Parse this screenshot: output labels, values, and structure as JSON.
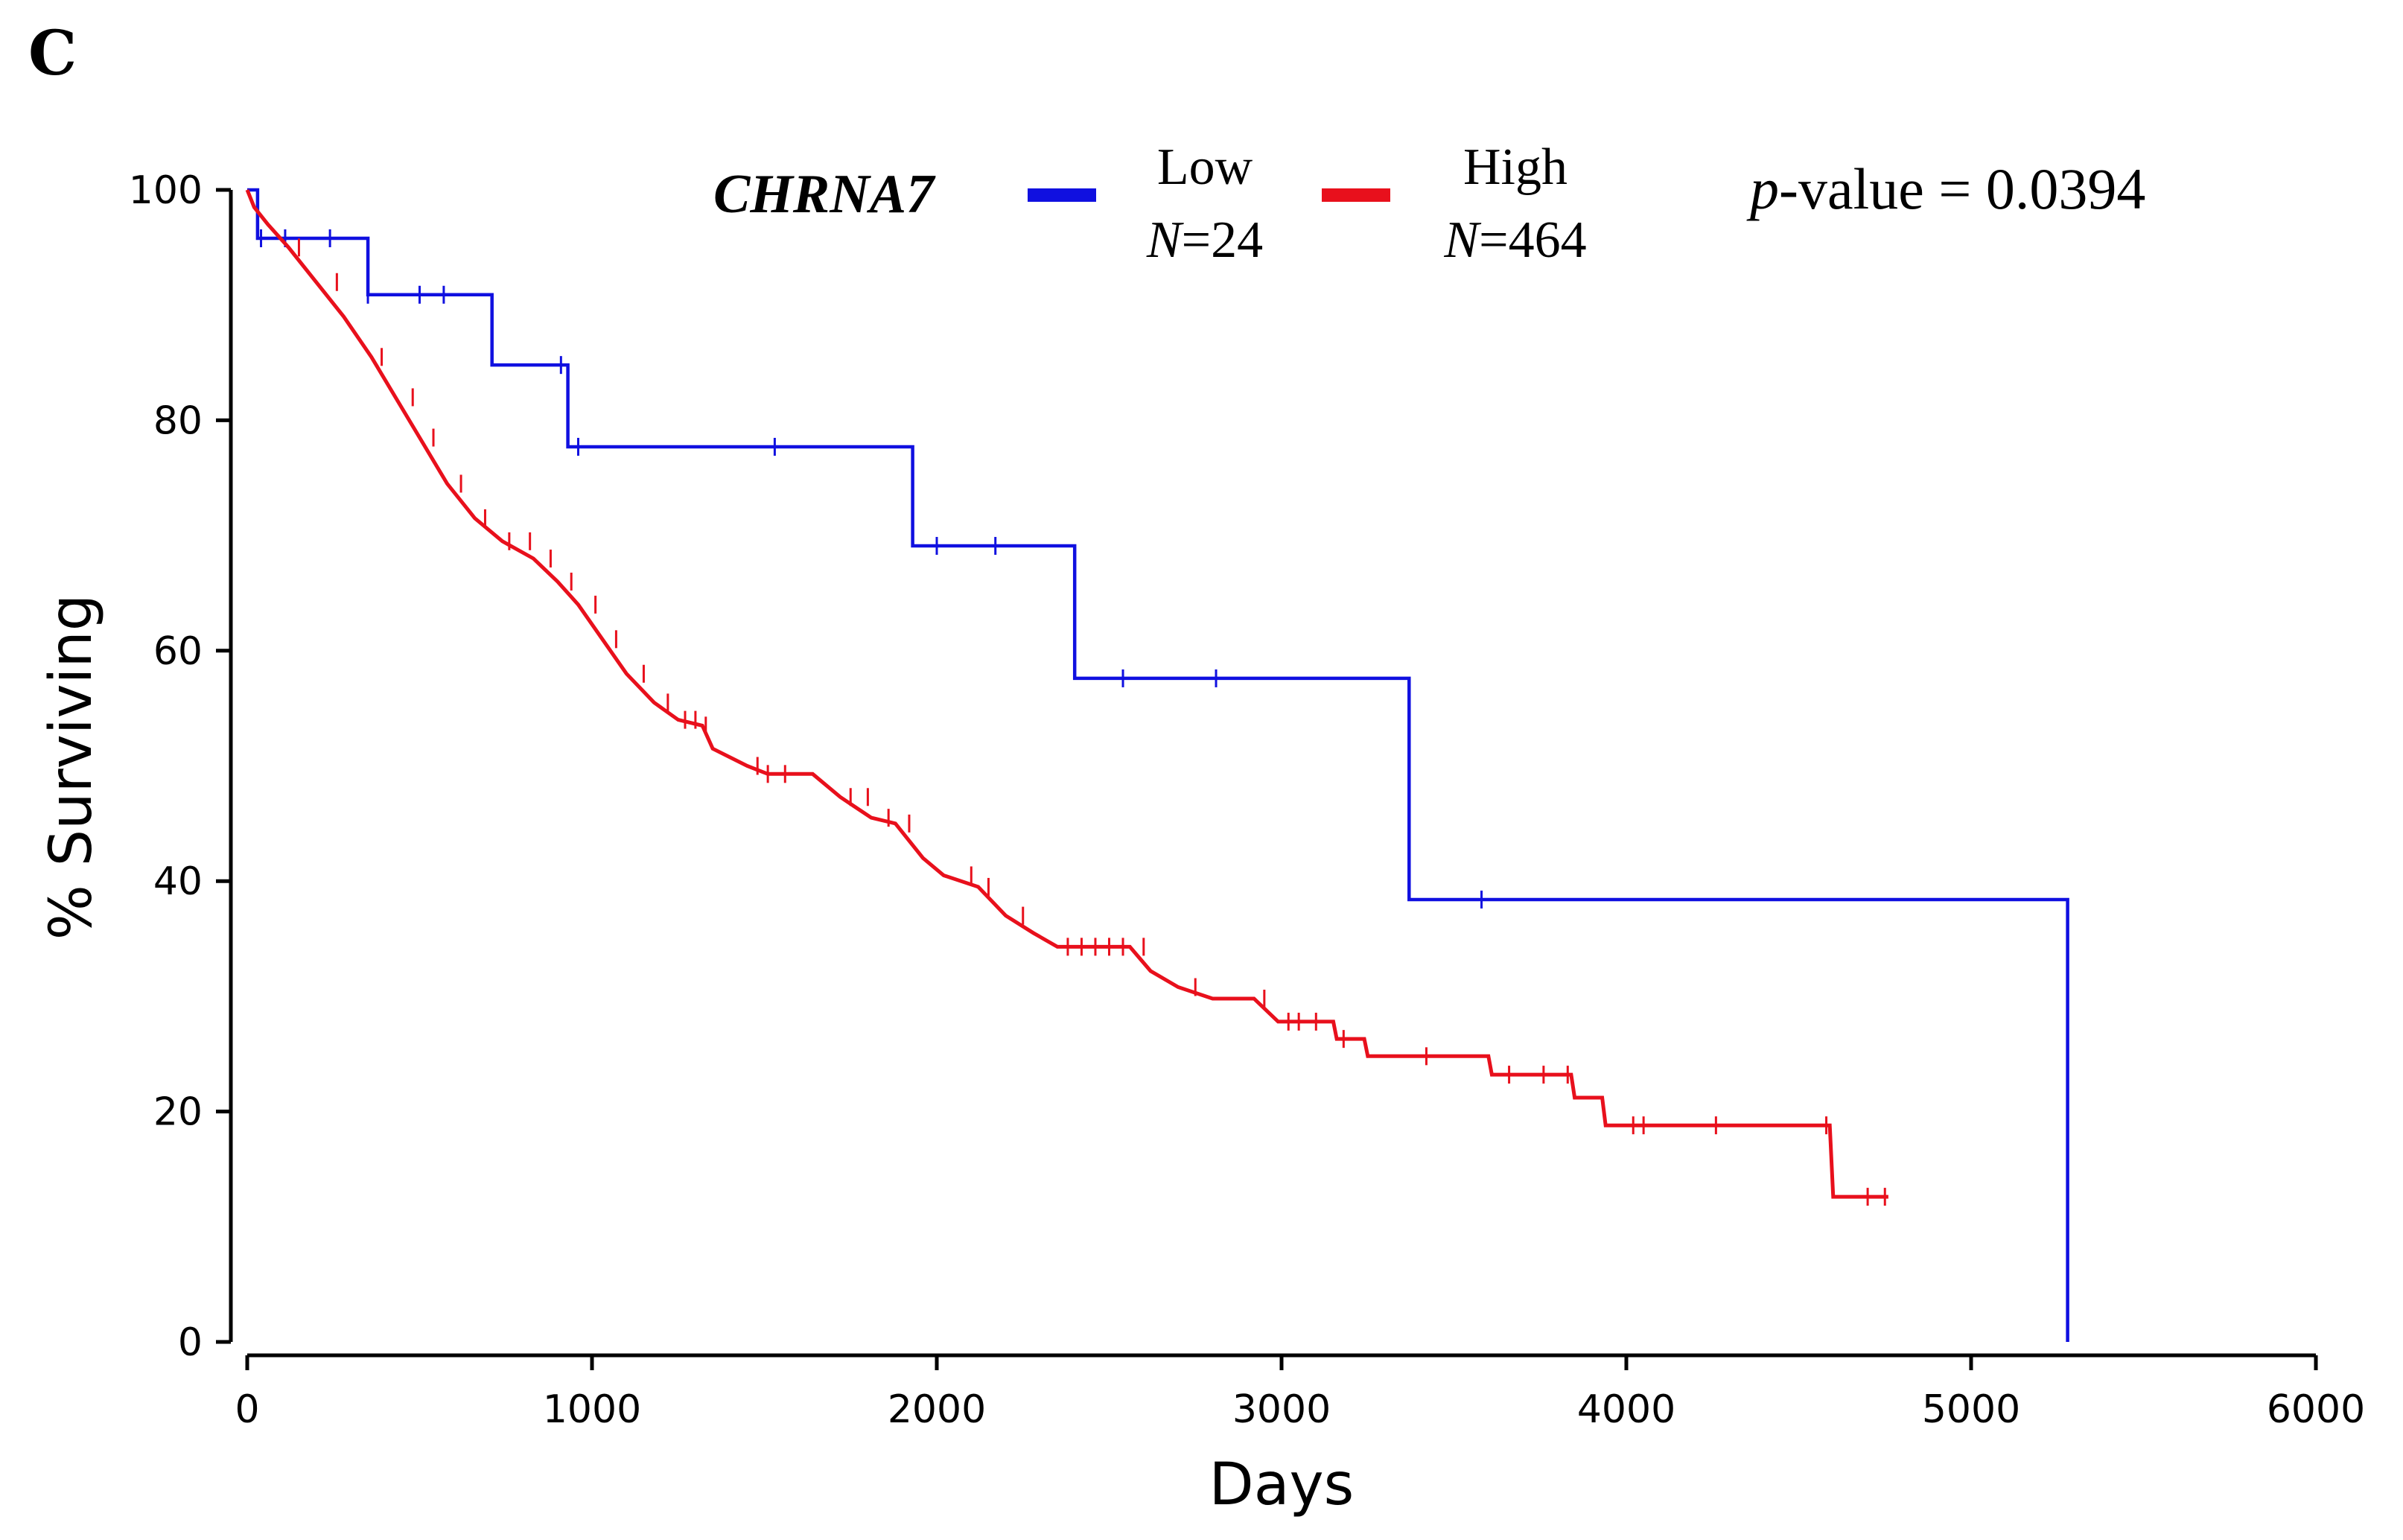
{
  "panel_label": "C",
  "legend": {
    "title": "CHRNA7",
    "entries": [
      {
        "label": "Low",
        "n_prefix": "N",
        "n_suffix": "=24",
        "color": "#1010e0"
      },
      {
        "label": "High",
        "n_prefix": "N",
        "n_suffix": "=464",
        "color": "#e8101c"
      }
    ]
  },
  "pvalue": {
    "italic_part": "p",
    "text": "-value = 0.0394"
  },
  "chart_data": {
    "type": "line",
    "xlabel": "Days",
    "ylabel": "% Surviving",
    "xlim": [
      0,
      6000
    ],
    "ylim": [
      0,
      100
    ],
    "x_ticks": [
      0,
      1000,
      2000,
      3000,
      4000,
      5000,
      6000
    ],
    "y_ticks": [
      0,
      20,
      40,
      60,
      80,
      100
    ],
    "step": true,
    "series": [
      {
        "name": "Low",
        "color": "#1010e0",
        "points": [
          [
            0,
            100
          ],
          [
            30,
            100
          ],
          [
            30,
            95.8
          ],
          [
            350,
            95.8
          ],
          [
            350,
            90.9
          ],
          [
            710,
            90.9
          ],
          [
            710,
            84.8
          ],
          [
            930,
            84.8
          ],
          [
            930,
            77.7
          ],
          [
            1930,
            77.7
          ],
          [
            1930,
            69.1
          ],
          [
            2400,
            69.1
          ],
          [
            2400,
            57.6
          ],
          [
            3370,
            57.6
          ],
          [
            3370,
            38.4
          ],
          [
            5280,
            38.4
          ],
          [
            5280,
            0
          ]
        ],
        "censor_x": [
          40,
          110,
          240,
          350,
          500,
          570,
          910,
          960,
          1530,
          2000,
          2170,
          2540,
          2810,
          3580
        ]
      },
      {
        "name": "High",
        "color": "#e8101c",
        "points": [
          [
            0,
            100
          ],
          [
            20,
            98.5
          ],
          [
            60,
            97
          ],
          [
            120,
            95
          ],
          [
            200,
            92
          ],
          [
            280,
            89
          ],
          [
            360,
            85.5
          ],
          [
            430,
            82
          ],
          [
            500,
            78.5
          ],
          [
            580,
            74.5
          ],
          [
            660,
            71.5
          ],
          [
            740,
            69.5
          ],
          [
            830,
            68
          ],
          [
            900,
            66
          ],
          [
            960,
            64
          ],
          [
            1030,
            61
          ],
          [
            1100,
            58
          ],
          [
            1180,
            55.5
          ],
          [
            1250,
            54
          ],
          [
            1320,
            53.5
          ],
          [
            1350,
            51.5
          ],
          [
            1450,
            50
          ],
          [
            1510,
            49.3
          ],
          [
            1640,
            49.3
          ],
          [
            1720,
            47.3
          ],
          [
            1810,
            45.5
          ],
          [
            1880,
            45
          ],
          [
            1960,
            42
          ],
          [
            2020,
            40.5
          ],
          [
            2120,
            39.5
          ],
          [
            2200,
            37
          ],
          [
            2280,
            35.5
          ],
          [
            2350,
            34.3
          ],
          [
            2560,
            34.3
          ],
          [
            2620,
            32.2
          ],
          [
            2700,
            30.8
          ],
          [
            2800,
            29.8
          ],
          [
            2920,
            29.8
          ],
          [
            2990,
            27.8
          ],
          [
            3150,
            27.8
          ],
          [
            3160,
            26.3
          ],
          [
            3240,
            26.3
          ],
          [
            3250,
            24.8
          ],
          [
            3600,
            24.8
          ],
          [
            3610,
            23.2
          ],
          [
            3840,
            23.2
          ],
          [
            3850,
            21.2
          ],
          [
            3930,
            21.2
          ],
          [
            3940,
            18.8
          ],
          [
            4590,
            18.8
          ],
          [
            4600,
            12.6
          ],
          [
            4760,
            12.6
          ]
        ],
        "censor_x": [
          150,
          260,
          390,
          480,
          540,
          620,
          690,
          760,
          820,
          880,
          940,
          1010,
          1070,
          1150,
          1220,
          1270,
          1300,
          1330,
          1480,
          1510,
          1560,
          1750,
          1800,
          1860,
          1920,
          2100,
          2150,
          2250,
          2380,
          2420,
          2460,
          2500,
          2540,
          2600,
          2750,
          2950,
          3020,
          3050,
          3100,
          3180,
          3420,
          3660,
          3760,
          3830,
          4020,
          4050,
          4260,
          4580,
          4700,
          4750
        ]
      }
    ]
  }
}
